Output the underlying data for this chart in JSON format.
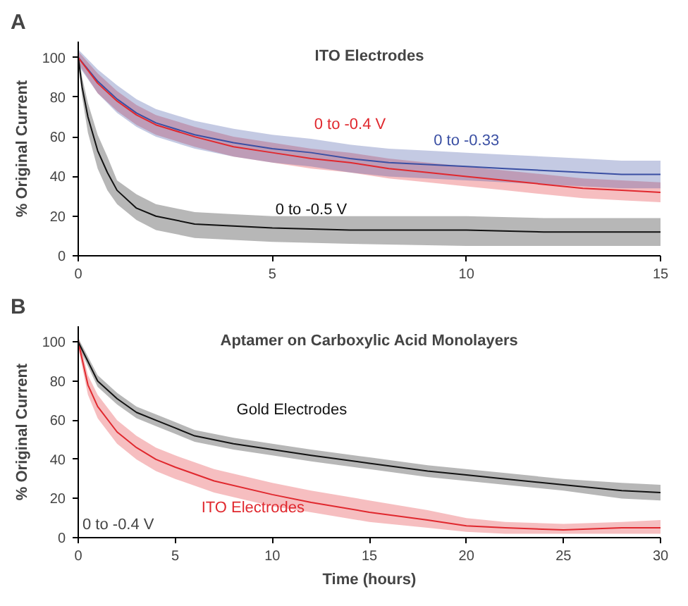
{
  "chart_data": [
    {
      "type": "line",
      "title": "ITO Electrodes",
      "ylabel": "% Original Current",
      "annotations": [
        "A"
      ],
      "xlim": [
        0,
        15
      ],
      "ylim": [
        0,
        108
      ],
      "xticks": [
        0,
        5,
        10,
        15
      ],
      "yticks": [
        0,
        20,
        40,
        60,
        80,
        100
      ],
      "grid": false,
      "marker": "none",
      "line_style": "solid",
      "series": [
        {
          "name": "0 to -0.4 V",
          "color": "#e0282e",
          "x": [
            0,
            0.5,
            1,
            1.5,
            2,
            3,
            4,
            5,
            6,
            7,
            8,
            9,
            10,
            11,
            12,
            13,
            14,
            15
          ],
          "values": [
            100,
            87,
            78,
            71,
            66,
            60,
            55,
            52,
            49,
            47,
            44,
            42,
            40,
            38,
            36,
            34,
            33,
            32
          ],
          "lower": [
            97,
            82,
            73,
            66,
            61,
            55,
            50,
            47,
            44,
            42,
            39,
            37,
            35,
            33,
            31,
            29,
            28,
            27
          ],
          "upper": [
            103,
            92,
            83,
            76,
            71,
            65,
            60,
            57,
            54,
            52,
            49,
            47,
            45,
            43,
            41,
            39,
            38,
            37
          ]
        },
        {
          "name": "0 to -0.33",
          "color": "#3a4fa3",
          "x": [
            0,
            0.5,
            1,
            1.5,
            2,
            3,
            4,
            5,
            6,
            7,
            8,
            9,
            10,
            11,
            12,
            13,
            14,
            15
          ],
          "values": [
            100,
            88,
            79,
            72,
            67,
            61,
            57,
            54,
            52,
            49,
            47,
            46,
            45,
            44,
            43,
            42,
            41,
            41
          ],
          "lower": [
            96,
            82,
            72,
            65,
            60,
            54,
            50,
            47,
            45,
            42,
            40,
            39,
            38,
            37,
            36,
            35,
            34,
            34
          ],
          "upper": [
            104,
            94,
            86,
            79,
            74,
            68,
            64,
            61,
            59,
            56,
            54,
            53,
            52,
            51,
            50,
            49,
            48,
            48
          ]
        },
        {
          "name": "0 to -0.5 V",
          "color": "#111111",
          "x": [
            0,
            0.1,
            0.25,
            0.5,
            0.75,
            1,
            1.5,
            2,
            3,
            4,
            5,
            7,
            10,
            12,
            15
          ],
          "values": [
            100,
            85,
            70,
            53,
            42,
            33,
            24,
            20,
            16,
            15,
            14,
            13,
            13,
            12,
            12
          ],
          "lower": [
            97,
            80,
            62,
            44,
            33,
            26,
            18,
            13,
            9,
            8,
            7,
            6,
            5,
            5,
            5
          ],
          "upper": [
            103,
            90,
            77,
            61,
            50,
            38,
            31,
            26,
            22,
            21,
            20,
            20,
            20,
            19,
            19
          ]
        }
      ]
    },
    {
      "type": "line",
      "title": "Aptamer on Carboxylic Acid Monolayers",
      "xlabel": "Time (hours)",
      "ylabel": "% Original Current",
      "annotations": [
        "B",
        "0 to -0.4 V"
      ],
      "xlim": [
        0,
        30
      ],
      "ylim": [
        0,
        108
      ],
      "xticks": [
        0,
        5,
        10,
        15,
        20,
        25,
        30
      ],
      "yticks": [
        0,
        20,
        40,
        60,
        80,
        100
      ],
      "grid": false,
      "marker": "none",
      "line_style": "solid",
      "series": [
        {
          "name": "Gold Electrodes",
          "color": "#111111",
          "x": [
            0,
            1,
            2,
            3,
            4,
            5,
            6,
            8,
            10,
            12,
            15,
            18,
            20,
            22,
            25,
            28,
            30
          ],
          "values": [
            100,
            80,
            71,
            64,
            60,
            56,
            52,
            48,
            45,
            42,
            38,
            34,
            32,
            30,
            27,
            24,
            23
          ],
          "lower": [
            98,
            77,
            68,
            61,
            57,
            53,
            49,
            45,
            42,
            39,
            35,
            31,
            29,
            27,
            24,
            20,
            19
          ],
          "upper": [
            102,
            83,
            74,
            67,
            63,
            59,
            55,
            51,
            48,
            45,
            41,
            37,
            35,
            33,
            30,
            28,
            27
          ]
        },
        {
          "name": "ITO Electrodes",
          "color": "#e0282e",
          "x": [
            0,
            0.5,
            1,
            2,
            3,
            4,
            5,
            7,
            10,
            12,
            15,
            18,
            20,
            22,
            25,
            28,
            30
          ],
          "values": [
            100,
            78,
            67,
            54,
            46,
            40,
            36,
            29,
            22,
            18,
            13,
            9,
            6,
            5,
            4,
            5,
            5
          ],
          "lower": [
            97,
            73,
            61,
            48,
            40,
            34,
            30,
            23,
            16,
            13,
            8,
            5,
            3,
            2,
            2,
            2,
            2
          ],
          "upper": [
            103,
            83,
            73,
            60,
            52,
            46,
            42,
            35,
            28,
            24,
            19,
            14,
            10,
            8,
            7,
            8,
            9
          ]
        }
      ]
    }
  ]
}
